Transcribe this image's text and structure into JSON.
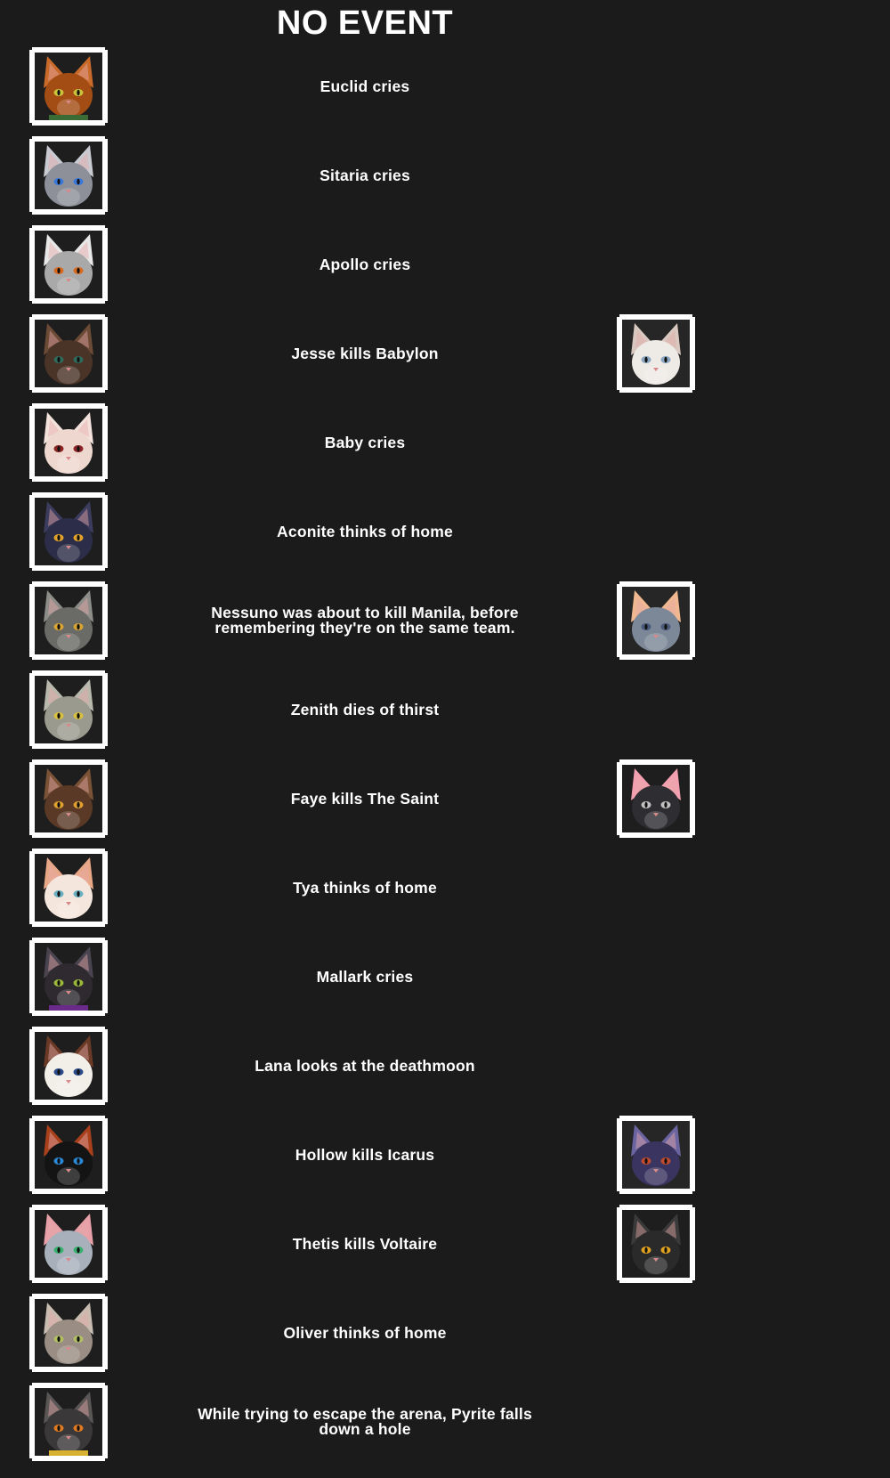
{
  "header": {
    "title": "NO EVENT"
  },
  "events": [
    {
      "text": "Euclid cries",
      "avatar": {
        "fur": "#a34d14",
        "ear": "#c86a2a",
        "eye": "#c9c23a",
        "bg": "#1e1e1e",
        "collar": "#3b6b35"
      }
    },
    {
      "text": "Sitaria cries",
      "avatar": {
        "fur": "#8d9099",
        "ear": "#c9cbd2",
        "eye": "#3a78d8",
        "bg": "#1e1e1e"
      }
    },
    {
      "text": "Apollo cries",
      "avatar": {
        "fur": "#a9a9a9",
        "ear": "#e8e8e8",
        "eye": "#d86a1f",
        "bg": "#1e1e1e"
      }
    },
    {
      "text": "Jesse kills Babylon",
      "avatar": {
        "fur": "#4a3327",
        "ear": "#6b4a36",
        "eye": "#2f6a5a",
        "bg": "#1e1e1e"
      },
      "victim": {
        "fur": "#eeeae6",
        "ear": "#d8c8c0",
        "eye": "#8aa6c0",
        "bg": "#262626"
      }
    },
    {
      "text": "Baby cries",
      "avatar": {
        "fur": "#eed7cf",
        "ear": "#f3e2db",
        "eye": "#8a2424",
        "bg": "#1e1e1e"
      }
    },
    {
      "text": "Aconite thinks of home",
      "avatar": {
        "fur": "#2c2d48",
        "ear": "#3c3d5e",
        "eye": "#e0a22a",
        "bg": "#1e1e1e"
      }
    },
    {
      "text": "Nessuno was about to kill Manila, before remembering they're on the same team.",
      "avatar": {
        "fur": "#6a6a66",
        "ear": "#8c8c88",
        "eye": "#d8a432",
        "bg": "#1e1e1e"
      },
      "victim": {
        "fur": "#7c8898",
        "ear": "#f0b890",
        "eye": "#4a5a7a",
        "bg": "#262626"
      }
    },
    {
      "text": "Zenith dies of thirst",
      "avatar": {
        "fur": "#9a9a8e",
        "ear": "#b8b8ac",
        "eye": "#d8c040",
        "bg": "#1e1e1e"
      }
    },
    {
      "text": "Faye kills The Saint",
      "avatar": {
        "fur": "#5a3a26",
        "ear": "#7a5236",
        "eye": "#e0a030",
        "bg": "#1e1e1e"
      },
      "victim": {
        "fur": "#2e2e32",
        "ear": "#f2a0b0",
        "eye": "#c0c0c0",
        "bg": "#1e1e1e"
      }
    },
    {
      "text": "Tya thinks of home",
      "avatar": {
        "fur": "#f4e6dc",
        "ear": "#e8a888",
        "eye": "#6ab0c0",
        "bg": "#1e1e1e"
      }
    },
    {
      "text": "Mallark cries",
      "avatar": {
        "fur": "#2e2a30",
        "ear": "#4a4450",
        "eye": "#9ab83a",
        "bg": "#1e1e1e",
        "collar": "#6a2a8a"
      }
    },
    {
      "text": "Lana looks at the deathmoon",
      "avatar": {
        "fur": "#f2eee8",
        "ear": "#6a3a26",
        "eye": "#2a4a8a",
        "bg": "#1e1e1e"
      }
    },
    {
      "text": "Hollow kills Icarus",
      "avatar": {
        "fur": "#141414",
        "ear": "#a8401c",
        "eye": "#2a8ad8",
        "bg": "#1e1e1e"
      },
      "victim": {
        "fur": "#3a3460",
        "ear": "#6a64a0",
        "eye": "#c04a30",
        "bg": "#262626"
      }
    },
    {
      "text": "Thetis kills Voltaire",
      "avatar": {
        "fur": "#a8b0bc",
        "ear": "#e8a0a8",
        "eye": "#3ab070",
        "bg": "#1e1e1e"
      },
      "victim": {
        "fur": "#2a2a2a",
        "ear": "#3a3a3a",
        "eye": "#e0a020",
        "bg": "#1e1e1e"
      }
    },
    {
      "text": "Oliver thinks of home",
      "avatar": {
        "fur": "#9a8e84",
        "ear": "#c8bcb0",
        "eye": "#b0c060",
        "bg": "#1e1e1e"
      }
    },
    {
      "text": "While trying to escape the arena, Pyrite falls down a hole",
      "avatar": {
        "fur": "#3a3838",
        "ear": "#5a5656",
        "eye": "#e07a20",
        "bg": "#1e1e1e",
        "collar": "#d8b030"
      }
    }
  ]
}
